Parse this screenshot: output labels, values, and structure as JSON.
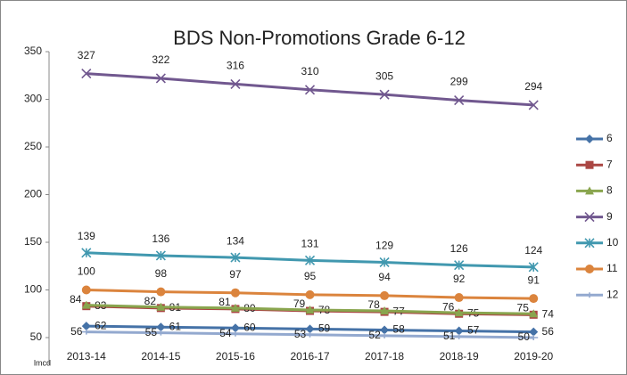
{
  "chart_data": {
    "type": "line",
    "title": "BDS Non-Promotions Grade 6-12",
    "footnote": "lmcd",
    "categories": [
      "2013-14",
      "2014-15",
      "2015-16",
      "2016-17",
      "2017-18",
      "2018-19",
      "2019-20"
    ],
    "ylim": [
      50,
      350
    ],
    "yticks": [
      50,
      100,
      150,
      200,
      250,
      300,
      350
    ],
    "series": [
      {
        "name": "6",
        "color": "#4572a7",
        "marker": "diamond",
        "values": [
          62,
          61,
          60,
          59,
          58,
          57,
          56
        ]
      },
      {
        "name": "7",
        "color": "#aa4643",
        "marker": "square",
        "values": [
          83,
          81,
          80,
          78,
          77,
          75,
          74
        ]
      },
      {
        "name": "8",
        "color": "#89a54e",
        "marker": "triangle",
        "values": [
          84,
          82,
          81,
          79,
          78,
          76,
          75
        ]
      },
      {
        "name": "9",
        "color": "#71588f",
        "marker": "x",
        "values": [
          327,
          322,
          316,
          310,
          305,
          299,
          294
        ]
      },
      {
        "name": "10",
        "color": "#4198af",
        "marker": "star",
        "values": [
          139,
          136,
          134,
          131,
          129,
          126,
          124
        ]
      },
      {
        "name": "11",
        "color": "#db843d",
        "marker": "circle",
        "values": [
          100,
          98,
          97,
          95,
          94,
          92,
          91
        ]
      },
      {
        "name": "12",
        "color": "#93a9cf",
        "marker": "plus",
        "values": [
          56,
          55,
          54,
          53,
          52,
          51,
          50
        ]
      }
    ]
  }
}
